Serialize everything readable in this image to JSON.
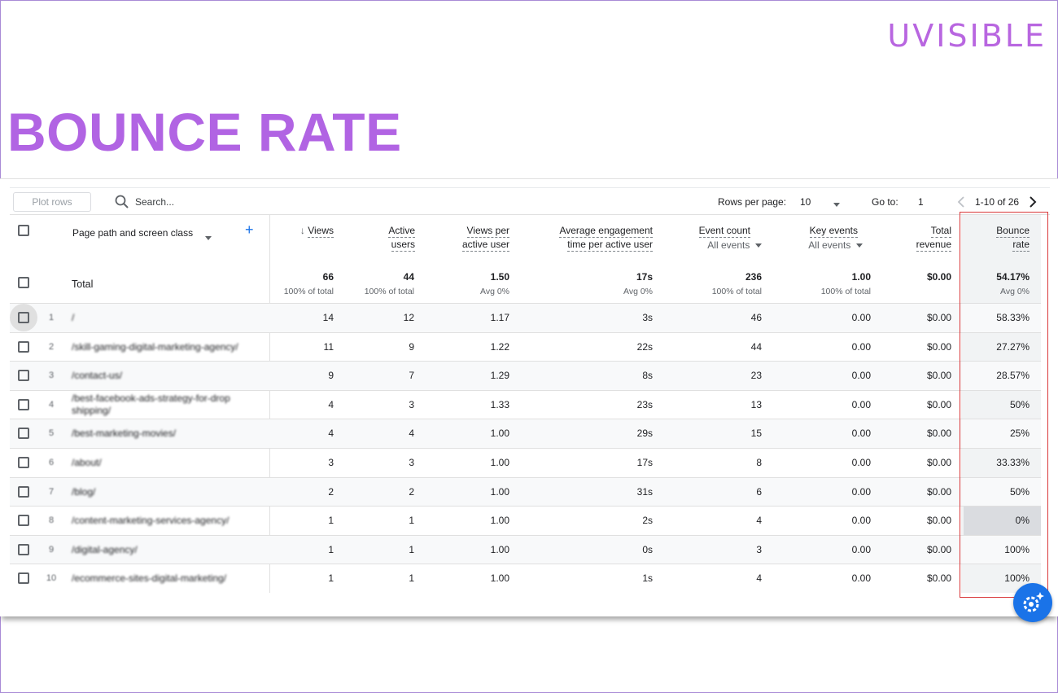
{
  "brand": {
    "name": "UVISIBLE"
  },
  "page_title": "BOUNCE RATE",
  "toolbar": {
    "plot_rows_label": "Plot rows",
    "search_placeholder": "Search...",
    "rows_per_page_label": "Rows per page:",
    "rows_per_page_value": "10",
    "go_to_label": "Go to:",
    "go_to_value": "1",
    "range_label": "1-10 of 26"
  },
  "columns": {
    "dimension": "Page path and screen class",
    "views": "Views",
    "active_users_1": "Active",
    "active_users_2": "users",
    "views_per_1": "Views per",
    "views_per_2": "active user",
    "avg_eng_1": "Average engagement",
    "avg_eng_2": "time per active user",
    "event_count": "Event count",
    "event_count_sub": "All events",
    "key_events": "Key events",
    "key_events_sub": "All events",
    "revenue_1": "Total",
    "revenue_2": "revenue",
    "bounce_1": "Bounce",
    "bounce_2": "rate"
  },
  "totals": {
    "label": "Total",
    "views": "66",
    "views_sub": "100% of total",
    "users": "44",
    "users_sub": "100% of total",
    "vpu": "1.50",
    "vpu_sub": "Avg 0%",
    "eng": "17s",
    "eng_sub": "Avg 0%",
    "events": "236",
    "events_sub": "100% of total",
    "key": "1.00",
    "key_sub": "100% of total",
    "revenue": "$0.00",
    "bounce": "54.17%",
    "bounce_sub": "Avg 0%"
  },
  "rows": [
    {
      "idx": "1",
      "path": "/",
      "views": "14",
      "users": "12",
      "vpu": "1.17",
      "eng": "3s",
      "events": "46",
      "key": "0.00",
      "revenue": "$0.00",
      "bounce": "58.33%"
    },
    {
      "idx": "2",
      "path": "/skill-gaming-digital-marketing-agency/",
      "views": "11",
      "users": "9",
      "vpu": "1.22",
      "eng": "22s",
      "events": "44",
      "key": "0.00",
      "revenue": "$0.00",
      "bounce": "27.27%"
    },
    {
      "idx": "3",
      "path": "/contact-us/",
      "views": "9",
      "users": "7",
      "vpu": "1.29",
      "eng": "8s",
      "events": "23",
      "key": "0.00",
      "revenue": "$0.00",
      "bounce": "28.57%"
    },
    {
      "idx": "4",
      "path": "/best-facebook-ads-strategy-for-dropshipping/",
      "views": "4",
      "users": "3",
      "vpu": "1.33",
      "eng": "23s",
      "events": "13",
      "key": "0.00",
      "revenue": "$0.00",
      "bounce": "50%"
    },
    {
      "idx": "5",
      "path": "/best-marketing-movies/",
      "views": "4",
      "users": "4",
      "vpu": "1.00",
      "eng": "29s",
      "events": "15",
      "key": "0.00",
      "revenue": "$0.00",
      "bounce": "25%"
    },
    {
      "idx": "6",
      "path": "/about/",
      "views": "3",
      "users": "3",
      "vpu": "1.00",
      "eng": "17s",
      "events": "8",
      "key": "0.00",
      "revenue": "$0.00",
      "bounce": "33.33%"
    },
    {
      "idx": "7",
      "path": "/blog/",
      "views": "2",
      "users": "2",
      "vpu": "1.00",
      "eng": "31s",
      "events": "6",
      "key": "0.00",
      "revenue": "$0.00",
      "bounce": "50%"
    },
    {
      "idx": "8",
      "path": "/content-marketing-services-agency/",
      "views": "1",
      "users": "1",
      "vpu": "1.00",
      "eng": "2s",
      "events": "4",
      "key": "0.00",
      "revenue": "$0.00",
      "bounce": "0%"
    },
    {
      "idx": "9",
      "path": "/digital-agency/",
      "views": "1",
      "users": "1",
      "vpu": "1.00",
      "eng": "0s",
      "events": "3",
      "key": "0.00",
      "revenue": "$0.00",
      "bounce": "100%"
    },
    {
      "idx": "10",
      "path": "/ecommerce-sites-digital-marketing/",
      "views": "1",
      "users": "1",
      "vpu": "1.00",
      "eng": "1s",
      "events": "4",
      "key": "0.00",
      "revenue": "$0.00",
      "bounce": "100%"
    }
  ],
  "colors": {
    "title": "#b164e3",
    "brand": "#b866e0",
    "highlight": "#d9383a",
    "fab": "#1a73e8"
  }
}
